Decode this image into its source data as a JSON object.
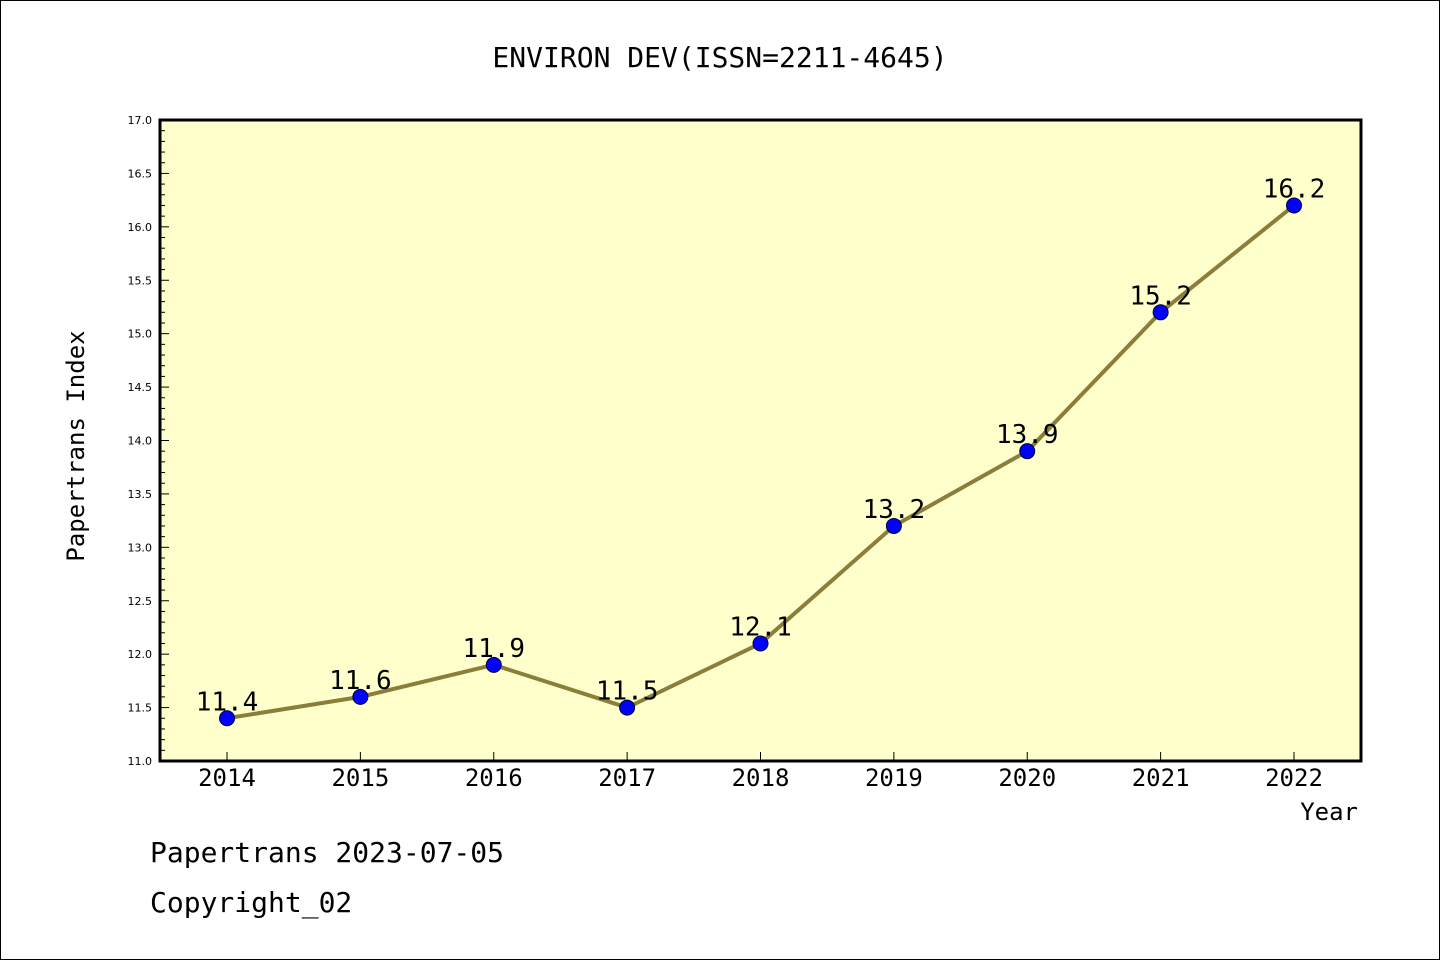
{
  "chart_data": {
    "type": "line",
    "title": "ENVIRON DEV(ISSN=2211-4645)",
    "xlabel": "Year",
    "ylabel": "Papertrans Index",
    "categories": [
      "2014",
      "2015",
      "2016",
      "2017",
      "2018",
      "2019",
      "2020",
      "2021",
      "2022"
    ],
    "series": [
      {
        "values": [
          11.4,
          11.6,
          11.9,
          11.5,
          12.1,
          13.2,
          13.9,
          15.2,
          16.2
        ],
        "data_labels": [
          "11.4",
          "11.6",
          "11.9",
          "11.5",
          "12.1",
          "13.2",
          "13.9",
          "15.2",
          "16.2"
        ]
      }
    ],
    "ylim": [
      11.0,
      17.0
    ],
    "yticks": [
      "11.0",
      "11.5",
      "12.0",
      "12.5",
      "13.0",
      "13.5",
      "14.0",
      "14.5",
      "15.0",
      "15.5",
      "16.0",
      "16.5",
      "17.0"
    ],
    "grid": false,
    "colors": {
      "plot_background": "#ffffcc",
      "line": "#8b7d3a",
      "marker": "#0000ff"
    }
  },
  "footer": {
    "line1": "Papertrans 2023-07-05",
    "line2": "Copyright_02"
  }
}
